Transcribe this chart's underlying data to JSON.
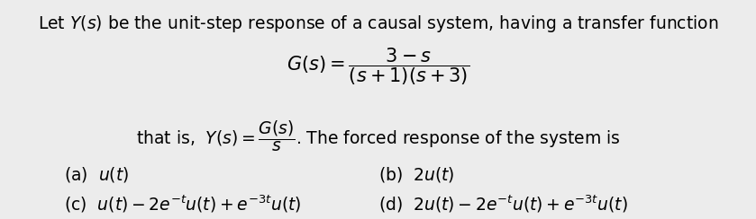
{
  "background_color": "#ececec",
  "text_color": "#000000",
  "figsize": [
    8.39,
    2.44
  ],
  "dpi": 100,
  "line1": "Let $Y(s)$ be the unit-step response of a causal system, having a transfer function",
  "eq_main": "$\\mathit{G}(s) = \\dfrac{3-s}{(s+1)(s+3)}$",
  "line3": "that is,  $\\mathit{Y}(s) = \\dfrac{\\mathit{G}(s)}{s}$. The forced response of the system is",
  "opt_a": "(a)  $u(t)$",
  "opt_b": "(b)  $2u(t)$",
  "opt_c": "(c)  $u(t) - 2e^{-t}u(t) + e^{-3t}u(t)$",
  "opt_d": "(d)  $2u(t) - 2e^{-t}u(t) + e^{-3t}u(t)$",
  "fontsize_main": 13.5,
  "fontsize_eq": 15
}
